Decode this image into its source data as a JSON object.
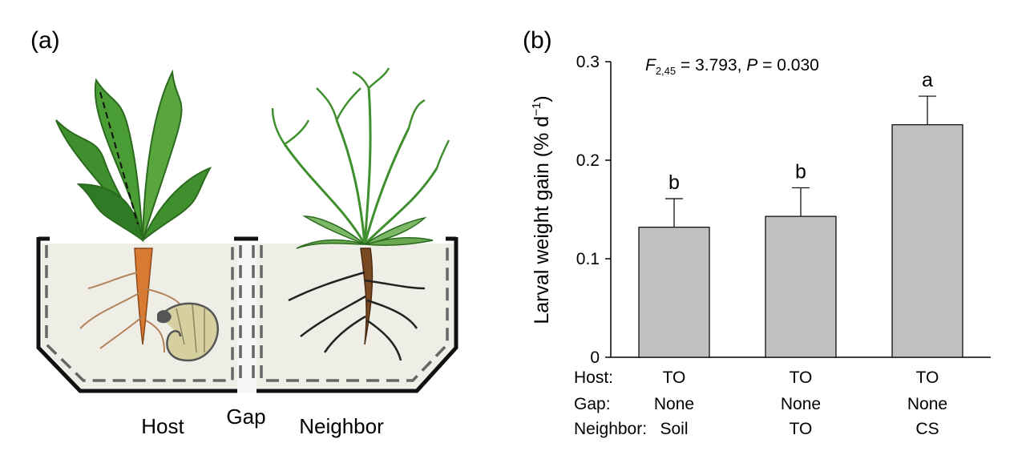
{
  "panel_a": {
    "label": "(a)",
    "host_label": "Host",
    "gap_label": "Gap",
    "neighbor_label": "Neighbor"
  },
  "panel_b": {
    "label": "(b)",
    "stat": {
      "F_letter": "F",
      "F_subscript": "2,45",
      "F_value": " = 3.793, ",
      "P_letter": "P",
      "P_value": " = 0.030"
    },
    "row_labels": [
      "Host:",
      "Gap:",
      "Neighbor:"
    ]
  },
  "colors": {
    "bar_fill": "#c0c0c0",
    "leaf_green": "#3f8f2e",
    "taproot": "#d97a33",
    "soil_fill": "#eeede6"
  },
  "chart_data": {
    "type": "bar",
    "ylabel_main": "Larval weight gain (% d",
    "ylabel_sup": "−1",
    "ylabel_end": ")",
    "ylim": [
      0,
      0.3
    ],
    "yticks": [
      0,
      0.1,
      0.2,
      0.3
    ],
    "ytick_labels": [
      "0",
      "0.1",
      "0.2",
      "0.3"
    ],
    "categories": [
      {
        "host": "TO",
        "gap": "None",
        "neighbor": "Soil"
      },
      {
        "host": "TO",
        "gap": "None",
        "neighbor": "TO"
      },
      {
        "host": "TO",
        "gap": "None",
        "neighbor": "CS"
      }
    ],
    "values": [
      0.132,
      0.143,
      0.236
    ],
    "errors": [
      0.029,
      0.029,
      0.029
    ],
    "significance": [
      "b",
      "b",
      "a"
    ],
    "grid": false
  }
}
